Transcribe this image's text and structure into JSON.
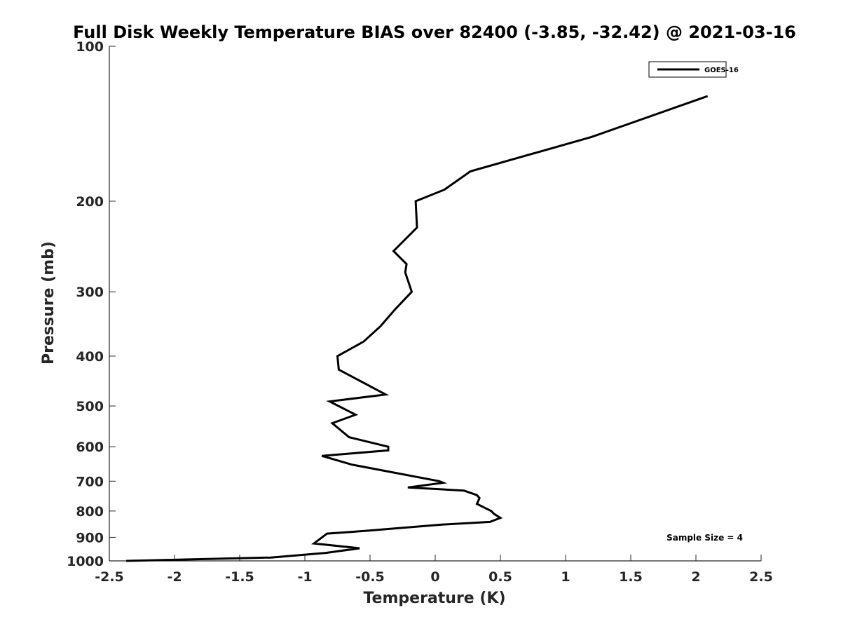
{
  "chart_data": {
    "type": "line",
    "title": "Full Disk Weekly Temperature BIAS over 82400 (-3.85, -32.42) @ 2021-03-16",
    "xlabel": "Temperature (K)",
    "ylabel": "Pressure (mb)",
    "xlim": [
      -2.5,
      2.5
    ],
    "ylim": [
      100,
      1000
    ],
    "y_scale": "log",
    "y_reversed": true,
    "x_ticks": [
      -2.5,
      -2,
      -1.5,
      -1,
      -0.5,
      0,
      0.5,
      1,
      1.5,
      2,
      2.5
    ],
    "x_tick_labels": [
      "-2.5",
      "-2",
      "-1.5",
      "-1",
      "-0.5",
      "0",
      "0.5",
      "1",
      "1.5",
      "2",
      "2.5"
    ],
    "y_ticks": [
      100,
      200,
      300,
      400,
      500,
      600,
      700,
      800,
      900,
      1000
    ],
    "y_tick_labels": [
      "100",
      "200",
      "300",
      "400",
      "500",
      "600",
      "700",
      "800",
      "900",
      "1000"
    ],
    "grid": false,
    "legend_position": "top-right",
    "line_color": "#000000",
    "series": [
      {
        "name": "GOES-16",
        "x": [
          2.09,
          1.2,
          0.27,
          0.07,
          -0.15,
          -0.14,
          -0.32,
          -0.22,
          -0.23,
          -0.18,
          -0.31,
          -0.42,
          -0.55,
          -0.75,
          -0.74,
          -0.38,
          -0.81,
          -0.61,
          -0.79,
          -0.66,
          -0.36,
          -0.36,
          -0.87,
          -0.64,
          0.03,
          0.06,
          -0.21,
          0.22,
          0.32,
          0.34,
          0.32,
          0.43,
          0.45,
          0.5,
          0.42,
          0.05,
          -0.55,
          -0.83,
          -0.93,
          -0.58,
          -0.84,
          -1.26,
          -2.37
        ],
        "y": [
          125,
          150,
          175,
          190,
          200,
          225,
          250,
          265,
          275,
          300,
          325,
          350,
          375,
          400,
          425,
          475,
          490,
          520,
          540,
          575,
          600,
          610,
          625,
          650,
          700,
          705,
          720,
          730,
          745,
          755,
          775,
          800,
          810,
          825,
          840,
          850,
          875,
          885,
          925,
          945,
          965,
          985,
          1000
        ]
      }
    ],
    "annotation": "Sample Size = 4"
  }
}
